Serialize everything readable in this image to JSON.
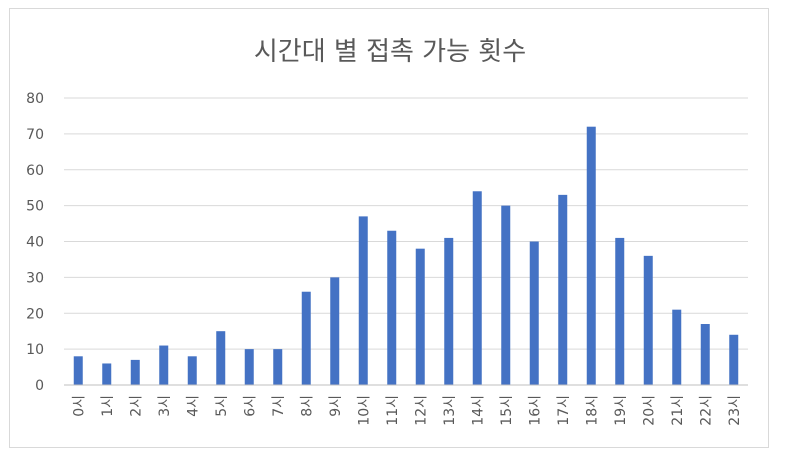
{
  "chart_data": {
    "type": "bar",
    "title": "시간대 별 접촉 가능 횟수",
    "categories": [
      "0시",
      "1시",
      "2시",
      "3시",
      "4시",
      "5시",
      "6시",
      "7시",
      "8시",
      "9시",
      "10시",
      "11시",
      "12시",
      "13시",
      "14시",
      "15시",
      "16시",
      "17시",
      "18시",
      "19시",
      "20시",
      "21시",
      "22시",
      "23시"
    ],
    "values": [
      8,
      6,
      7,
      11,
      8,
      15,
      10,
      10,
      26,
      30,
      47,
      43,
      38,
      41,
      54,
      50,
      40,
      53,
      72,
      41,
      36,
      21,
      17,
      14
    ],
    "yticks": [
      "0",
      "10",
      "20",
      "30",
      "40",
      "50",
      "60",
      "70",
      "80"
    ],
    "ylim": [
      0,
      80
    ],
    "grid": true,
    "legend": "none",
    "bar_color": "#4472c4"
  }
}
